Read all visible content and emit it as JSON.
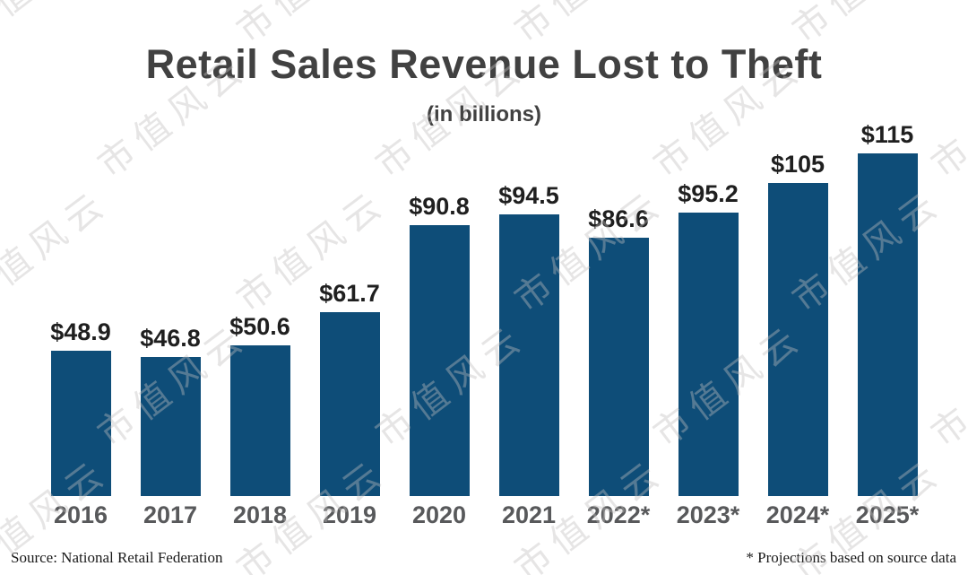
{
  "title": "Retail Sales Revenue Lost to Theft",
  "subtitle": "(in billions)",
  "footer": {
    "source": "Source: National Retail Federation",
    "note": "* Projections based on source data"
  },
  "watermark": {
    "text": "市值风云",
    "color": "rgba(193,189,189,0.40)"
  },
  "colors": {
    "bar": "#0e4d78",
    "title": "#414141",
    "value_label": "#1f1f1f",
    "year_label": "#58595b"
  },
  "chart_data": {
    "type": "bar",
    "title": "Retail Sales Revenue Lost to Theft",
    "subtitle": "(in billions)",
    "categories": [
      "2016",
      "2017",
      "2018",
      "2019",
      "2020",
      "2021",
      "2022*",
      "2023*",
      "2024*",
      "2025*"
    ],
    "values": [
      48.9,
      46.8,
      50.6,
      61.7,
      90.8,
      94.5,
      86.6,
      95.2,
      105,
      115
    ],
    "value_labels": [
      "$48.9",
      "$46.8",
      "$50.6",
      "$61.7",
      "$90.8",
      "$94.5",
      "$86.6",
      "$95.2",
      "$105",
      "$115"
    ],
    "xlabel": "",
    "ylabel": "",
    "ylim": [
      0,
      115
    ],
    "grid": false,
    "legend": null,
    "note_marker_meaning": "* Projections based on source data"
  }
}
